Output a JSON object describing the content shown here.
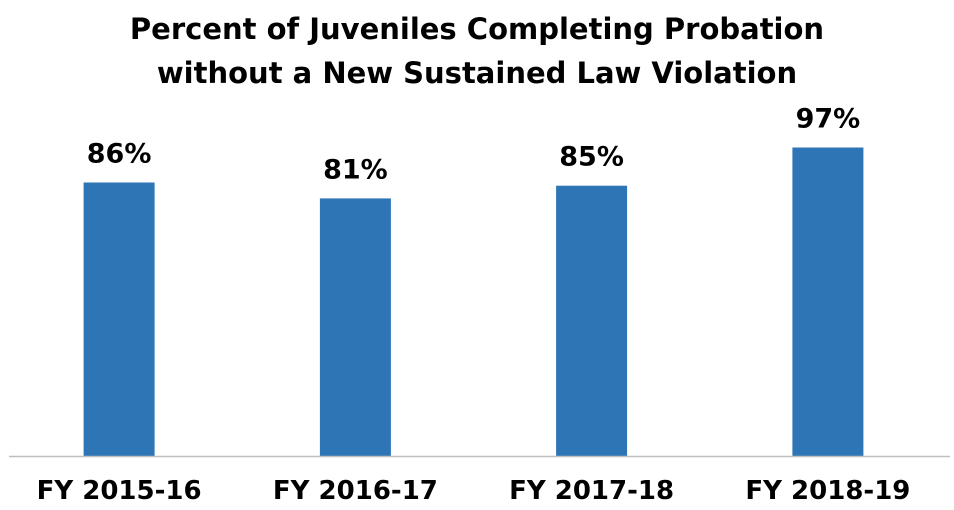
{
  "chart_data": {
    "type": "bar",
    "title": "Percent of Juveniles Completing Probation without a New Sustained Law Violation",
    "title_lines": [
      "Percent of Juveniles Completing Probation",
      "without a New Sustained Law Violation"
    ],
    "categories": [
      "FY 2015-16",
      "FY 2016-17",
      "FY 2017-18",
      "FY 2018-19"
    ],
    "values": [
      86,
      81,
      85,
      97
    ],
    "data_labels": [
      "86%",
      "81%",
      "85%",
      "97%"
    ],
    "unit": "%",
    "xlabel": "",
    "ylabel": "",
    "ylim": [
      0,
      100
    ],
    "grid": false,
    "legend": "none",
    "colors": {
      "bar": "#2E75B6",
      "axis": "#BFBFBF",
      "text": "#000000"
    }
  }
}
